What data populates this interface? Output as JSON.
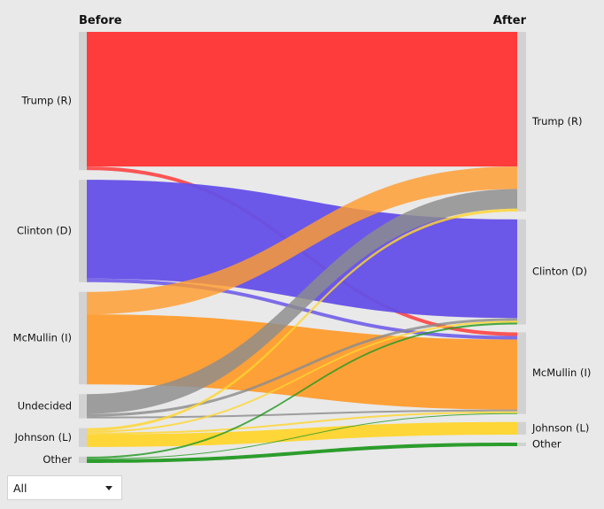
{
  "chart_data": {
    "type": "sankey",
    "columns": {
      "left": "Before",
      "right": "After"
    },
    "nodes_before": [
      {
        "id": "trump",
        "label": "Trump (R)",
        "color": "#ff3333"
      },
      {
        "id": "clinton",
        "label": "Clinton (D)",
        "color": "#6450e8"
      },
      {
        "id": "mcmullin",
        "label": "McMullin (I)",
        "color": "#ff9c2e"
      },
      {
        "id": "undecided",
        "label": "Undecided",
        "color": "#8c8c8c"
      },
      {
        "id": "johnson",
        "label": "Johnson (L)",
        "color": "#ffd52e"
      },
      {
        "id": "other",
        "label": "Other",
        "color": "#229922"
      }
    ],
    "nodes_after": [
      {
        "id": "trump",
        "label": "Trump (R)"
      },
      {
        "id": "clinton",
        "label": "Clinton (D)"
      },
      {
        "id": "mcmullin",
        "label": "McMullin (I)"
      },
      {
        "id": "johnson",
        "label": "Johnson (L)"
      },
      {
        "id": "other",
        "label": "Other"
      }
    ],
    "flows": [
      {
        "from": "trump",
        "to": "trump",
        "value": 150
      },
      {
        "from": "trump",
        "to": "mcmullin",
        "value": 4
      },
      {
        "from": "clinton",
        "to": "clinton",
        "value": 110
      },
      {
        "from": "clinton",
        "to": "mcmullin",
        "value": 4
      },
      {
        "from": "mcmullin",
        "to": "trump",
        "value": 25
      },
      {
        "from": "mcmullin",
        "to": "mcmullin",
        "value": 78
      },
      {
        "from": "undecided",
        "to": "trump",
        "value": 22
      },
      {
        "from": "undecided",
        "to": "clinton",
        "value": 3
      },
      {
        "from": "undecided",
        "to": "mcmullin",
        "value": 2
      },
      {
        "from": "johnson",
        "to": "trump",
        "value": 3
      },
      {
        "from": "johnson",
        "to": "clinton",
        "value": 2
      },
      {
        "from": "johnson",
        "to": "mcmullin",
        "value": 2
      },
      {
        "from": "johnson",
        "to": "johnson",
        "value": 14
      },
      {
        "from": "other",
        "to": "clinton",
        "value": 2
      },
      {
        "from": "other",
        "to": "mcmullin",
        "value": 1
      },
      {
        "from": "other",
        "to": "other",
        "value": 4
      }
    ]
  },
  "filter": {
    "selected": "All"
  }
}
